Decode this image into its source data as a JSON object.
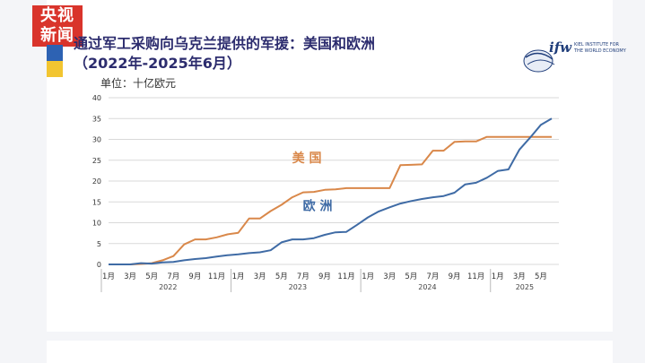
{
  "header": {
    "channel_line1": "央视",
    "channel_line2": "新闻",
    "title": "通过军工采购向乌克兰提供的军援：美国和欧洲",
    "subtitle": "（2022年-2025年6月）",
    "unit": "单位：十亿欧元",
    "ifw_logo": "ifw",
    "ifw_sub": "KIEL INSTITUTE FOR THE WORLD ECONOMY"
  },
  "colors": {
    "us": "#d9884a",
    "eu": "#3f6ba5",
    "grid": "#d9d9d9",
    "title": "#2c2c6e",
    "cctv_red": "#d9342b",
    "flag_blue": "#2d62b3",
    "flag_yellow": "#f2c531"
  },
  "chart_data": {
    "type": "line",
    "ylim": [
      0,
      40
    ],
    "yticks": [
      0,
      5,
      10,
      15,
      20,
      25,
      30,
      35,
      40
    ],
    "month_ticks": [
      "1月",
      "3月",
      "5月",
      "7月",
      "9月",
      "11月",
      "1月",
      "3月",
      "5月",
      "7月",
      "9月",
      "11月",
      "1月",
      "3月",
      "5月",
      "7月",
      "9月",
      "11月",
      "1月",
      "3月",
      "5月"
    ],
    "year_labels": [
      "2022",
      "2023",
      "2024",
      "2025"
    ],
    "x": [
      "2022-01",
      "2022-02",
      "2022-03",
      "2022-04",
      "2022-05",
      "2022-06",
      "2022-07",
      "2022-08",
      "2022-09",
      "2022-10",
      "2022-11",
      "2022-12",
      "2023-01",
      "2023-02",
      "2023-03",
      "2023-04",
      "2023-05",
      "2023-06",
      "2023-07",
      "2023-08",
      "2023-09",
      "2023-10",
      "2023-11",
      "2023-12",
      "2024-01",
      "2024-02",
      "2024-03",
      "2024-04",
      "2024-05",
      "2024-06",
      "2024-07",
      "2024-08",
      "2024-09",
      "2024-10",
      "2024-11",
      "2024-12",
      "2025-01",
      "2025-02",
      "2025-03",
      "2025-04",
      "2025-05",
      "2025-06"
    ],
    "series": [
      {
        "name": "美 国",
        "values": [
          0,
          0,
          0,
          0.1,
          0.3,
          1.0,
          2.0,
          4.8,
          6.0,
          6.0,
          6.5,
          7.2,
          7.6,
          11.0,
          11.0,
          12.8,
          14.3,
          16.1,
          17.3,
          17.4,
          17.9,
          18.0,
          18.3,
          18.3,
          18.3,
          18.3,
          18.3,
          23.8,
          23.9,
          24.0,
          27.3,
          27.3,
          29.4,
          29.5,
          29.5,
          30.6,
          30.6,
          30.6,
          30.6,
          30.6,
          30.6,
          30.6
        ]
      },
      {
        "name": "欧 洲",
        "values": [
          0,
          0,
          0,
          0.3,
          0.2,
          0.5,
          0.6,
          1.0,
          1.3,
          1.5,
          1.9,
          2.2,
          2.4,
          2.7,
          2.9,
          3.4,
          5.3,
          6.0,
          6.0,
          6.3,
          7.1,
          7.7,
          7.8,
          9.5,
          11.3,
          12.7,
          13.7,
          14.6,
          15.2,
          15.7,
          16.1,
          16.4,
          17.2,
          19.2,
          19.6,
          20.8,
          22.4,
          22.8,
          27.5,
          30.4,
          33.5,
          35.0
        ]
      }
    ]
  }
}
